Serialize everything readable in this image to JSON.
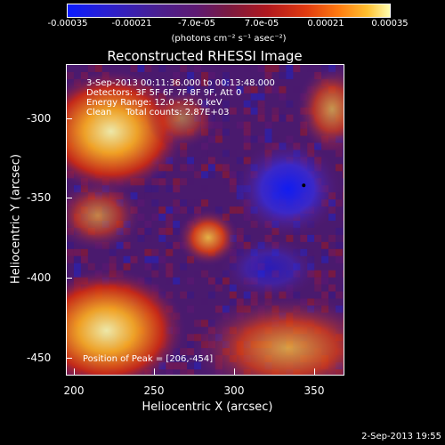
{
  "colorbar": {
    "tick_labels": [
      "-0.00035",
      "-0.00021",
      "-7.0e-05",
      "7.0e-05",
      "0.00021",
      "0.00035"
    ],
    "units": "(photons cm⁻² s⁻¹ asec⁻²)"
  },
  "title": "Reconstructed RHESSI Image",
  "info": {
    "time_range": "3-Sep-2013 00:11:36.000 to 00:13:48.000",
    "detectors": "Detectors: 3F 5F 6F 7F 8F 9F, Att 0",
    "energy": "Energy Range: 12.0 - 25.0 keV",
    "clean": "Clean     Total counts: 2.87E+03",
    "peak": "Position of Peak = [206,-454]"
  },
  "axes": {
    "xlabel": "Heliocentric X (arcsec)",
    "ylabel": "Heliocentric Y (arcsec)",
    "xticks": [
      "200",
      "250",
      "300",
      "350"
    ],
    "yticks": [
      "-300",
      "-350",
      "-400",
      "-450"
    ],
    "x_range": [
      195,
      385
    ],
    "y_range": [
      -460,
      -265
    ]
  },
  "timestamp": "2-Sep-2013 19:55",
  "colors": {
    "low": "#0b1cff",
    "mid": "#5e1a72",
    "high": "#ffffb0"
  }
}
